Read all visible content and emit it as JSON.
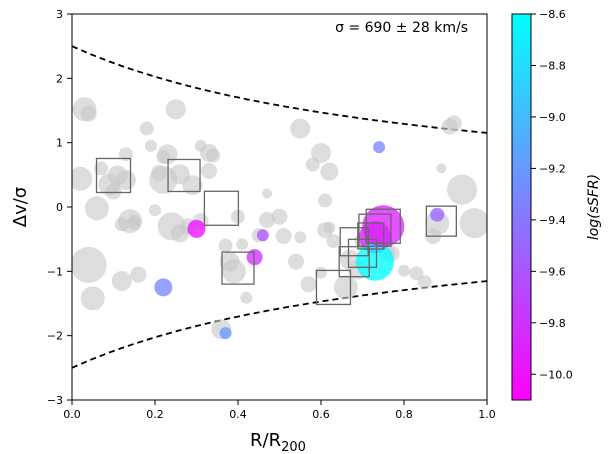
{
  "chart_data": {
    "type": "scatter",
    "title": "",
    "annotation": "σ = 690 ± 28 km/s",
    "xlabel": "R/R",
    "xlabel_sub": "200",
    "ylabel": "Δv/σ",
    "xlim": [
      0.0,
      1.0
    ],
    "ylim": [
      -3,
      3
    ],
    "x_ticks": [
      "0.0",
      "0.2",
      "0.4",
      "0.6",
      "0.8",
      "1.0"
    ],
    "y_ticks": [
      "−3",
      "−2",
      "−1",
      "0",
      "1",
      "2",
      "3"
    ],
    "colorbar": {
      "label": "log(sSFR)",
      "range": [
        -10.1,
        -8.6
      ],
      "ticks": [
        "−8.6",
        "−8.8",
        "−9.0",
        "−9.2",
        "−9.4",
        "−9.6",
        "−9.8",
        "−10.0"
      ],
      "colormap_low": "#ff00ff",
      "colormap_high": "#00ffff"
    },
    "caustic": {
      "style": "dashed",
      "amplitude": 2.5,
      "x_start": 0.0,
      "x_end": 1.0
    },
    "gray_points": [
      [
        0.02,
        0.44,
        12
      ],
      [
        0.03,
        1.52,
        12
      ],
      [
        0.04,
        1.45,
        8
      ],
      [
        0.04,
        -0.9,
        18
      ],
      [
        0.05,
        -1.42,
        12
      ],
      [
        0.06,
        -0.02,
        12
      ],
      [
        0.07,
        0.6,
        7
      ],
      [
        0.09,
        0.35,
        11
      ],
      [
        0.1,
        0.24,
        8
      ],
      [
        0.11,
        0.49,
        10
      ],
      [
        0.12,
        -0.27,
        7
      ],
      [
        0.12,
        -1.15,
        10
      ],
      [
        0.13,
        0.82,
        7
      ],
      [
        0.13,
        0.42,
        10
      ],
      [
        0.14,
        -0.22,
        12
      ],
      [
        0.15,
        -0.25,
        7
      ],
      [
        0.15,
        -0.21,
        6
      ],
      [
        0.16,
        -1.05,
        8
      ],
      [
        0.18,
        1.22,
        7
      ],
      [
        0.19,
        0.95,
        6
      ],
      [
        0.2,
        -0.05,
        6
      ],
      [
        0.21,
        0.53,
        8
      ],
      [
        0.22,
        0.78,
        7
      ],
      [
        0.22,
        0.42,
        14
      ],
      [
        0.23,
        0.82,
        10
      ],
      [
        0.24,
        -0.3,
        14
      ],
      [
        0.25,
        1.52,
        10
      ],
      [
        0.26,
        0.51,
        10
      ],
      [
        0.26,
        -0.41,
        9
      ],
      [
        0.28,
        -0.3,
        8
      ],
      [
        0.29,
        0.34,
        10
      ],
      [
        0.31,
        -0.22,
        8
      ],
      [
        0.31,
        0.95,
        6
      ],
      [
        0.33,
        0.56,
        8
      ],
      [
        0.33,
        0.84,
        9
      ],
      [
        0.34,
        0.8,
        7
      ],
      [
        0.36,
        -1.9,
        10
      ],
      [
        0.37,
        -0.6,
        7
      ],
      [
        0.38,
        -0.85,
        10
      ],
      [
        0.39,
        -1.0,
        12
      ],
      [
        0.4,
        -0.15,
        7
      ],
      [
        0.41,
        -0.58,
        6
      ],
      [
        0.42,
        -1.41,
        6
      ],
      [
        0.45,
        -0.44,
        7
      ],
      [
        0.47,
        -0.2,
        8
      ],
      [
        0.47,
        0.21,
        5
      ],
      [
        0.5,
        -0.15,
        8
      ],
      [
        0.51,
        -0.45,
        8
      ],
      [
        0.54,
        -0.85,
        8
      ],
      [
        0.55,
        -0.47,
        6
      ],
      [
        0.55,
        1.22,
        10
      ],
      [
        0.57,
        -1.2,
        8
      ],
      [
        0.58,
        0.66,
        7
      ],
      [
        0.6,
        -1.02,
        6
      ],
      [
        0.6,
        0.84,
        10
      ],
      [
        0.61,
        -0.36,
        8
      ],
      [
        0.61,
        0.1,
        7
      ],
      [
        0.62,
        -0.32,
        6
      ],
      [
        0.62,
        0.55,
        9
      ],
      [
        0.63,
        -0.53,
        7
      ],
      [
        0.66,
        -1.25,
        12
      ],
      [
        0.67,
        -0.82,
        10
      ],
      [
        0.69,
        -0.97,
        10
      ],
      [
        0.7,
        -0.53,
        8
      ],
      [
        0.72,
        -0.45,
        8
      ],
      [
        0.73,
        -0.42,
        10
      ],
      [
        0.76,
        -0.72,
        8
      ],
      [
        0.77,
        -0.72,
        8
      ],
      [
        0.8,
        -0.99,
        6
      ],
      [
        0.83,
        -1.03,
        7
      ],
      [
        0.85,
        -1.17,
        7
      ],
      [
        0.87,
        -0.45,
        8
      ],
      [
        0.88,
        -0.25,
        12
      ],
      [
        0.89,
        0.6,
        5
      ],
      [
        0.91,
        1.25,
        8
      ],
      [
        0.92,
        1.3,
        8
      ],
      [
        0.94,
        0.27,
        15
      ],
      [
        0.97,
        -0.25,
        15
      ]
    ],
    "colored_points": [
      [
        0.22,
        -1.25,
        -9.3,
        9
      ],
      [
        0.3,
        -0.34,
        -10.0,
        9
      ],
      [
        0.37,
        -1.96,
        -9.2,
        6
      ],
      [
        0.44,
        -0.78,
        -9.8,
        8
      ],
      [
        0.46,
        -0.44,
        -9.6,
        6
      ],
      [
        0.73,
        -0.47,
        -9.9,
        16
      ],
      [
        0.73,
        -0.85,
        -8.6,
        19
      ],
      [
        0.75,
        -0.3,
        -9.9,
        21
      ],
      [
        0.74,
        0.93,
        -9.3,
        6
      ],
      [
        0.88,
        -0.12,
        -9.5,
        7
      ]
    ],
    "squares": [
      [
        0.1,
        0.49,
        17
      ],
      [
        0.27,
        0.49,
        16
      ],
      [
        0.36,
        -0.02,
        17
      ],
      [
        0.4,
        -0.95,
        16
      ],
      [
        0.63,
        -1.25,
        17
      ],
      [
        0.68,
        -0.54,
        14
      ],
      [
        0.68,
        -0.85,
        15
      ],
      [
        0.7,
        -0.72,
        14
      ],
      [
        0.72,
        -0.45,
        13
      ],
      [
        0.73,
        -0.36,
        16
      ],
      [
        0.75,
        -0.3,
        17
      ],
      [
        0.89,
        -0.22,
        15
      ]
    ]
  }
}
